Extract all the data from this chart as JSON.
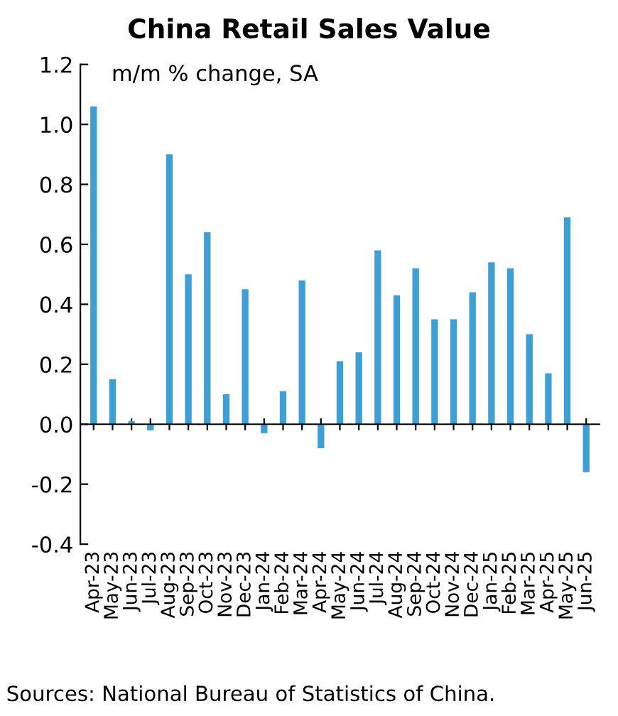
{
  "chart_data": {
    "type": "bar",
    "title": "China Retail Sales Value",
    "ylabel": "m/m % change, SA",
    "categories": [
      "Apr-23",
      "May-23",
      "Jun-23",
      "Jul-23",
      "Aug-23",
      "Sep-23",
      "Oct-23",
      "Nov-23",
      "Dec-23",
      "Jan-24",
      "Feb-24",
      "Mar-24",
      "Apr-24",
      "May-24",
      "Jun-24",
      "Jul-24",
      "Aug-24",
      "Sep-24",
      "Oct-24",
      "Nov-24",
      "Dec-24",
      "Jan-25",
      "Feb-25",
      "Mar-25",
      "Apr-25",
      "May-25",
      "Jun-25"
    ],
    "values": [
      1.06,
      0.15,
      0.01,
      -0.02,
      0.9,
      0.5,
      0.64,
      0.1,
      0.45,
      -0.03,
      0.11,
      0.48,
      -0.08,
      0.21,
      0.24,
      0.58,
      0.43,
      0.52,
      0.35,
      0.35,
      0.44,
      0.54,
      0.52,
      0.3,
      0.17,
      0.69,
      -0.16
    ],
    "color": "#3d9fd6",
    "ylim": [
      -0.4,
      1.2
    ],
    "yticks": [
      {
        "value": -0.4,
        "label": "-0.4"
      },
      {
        "value": -0.2,
        "label": "-0.2"
      },
      {
        "value": 0,
        "label": "0.0"
      },
      {
        "value": 0.2,
        "label": "0.2"
      },
      {
        "value": 0.4,
        "label": "0.4"
      },
      {
        "value": 0.6,
        "label": "0.6"
      },
      {
        "value": 0.8,
        "label": "0.8"
      },
      {
        "value": 1.0,
        "label": "1.0"
      },
      {
        "value": 1.2,
        "label": "1.2"
      }
    ],
    "legend": false,
    "annotations": [
      "Sources: National Bureau of Statistics of China."
    ]
  }
}
